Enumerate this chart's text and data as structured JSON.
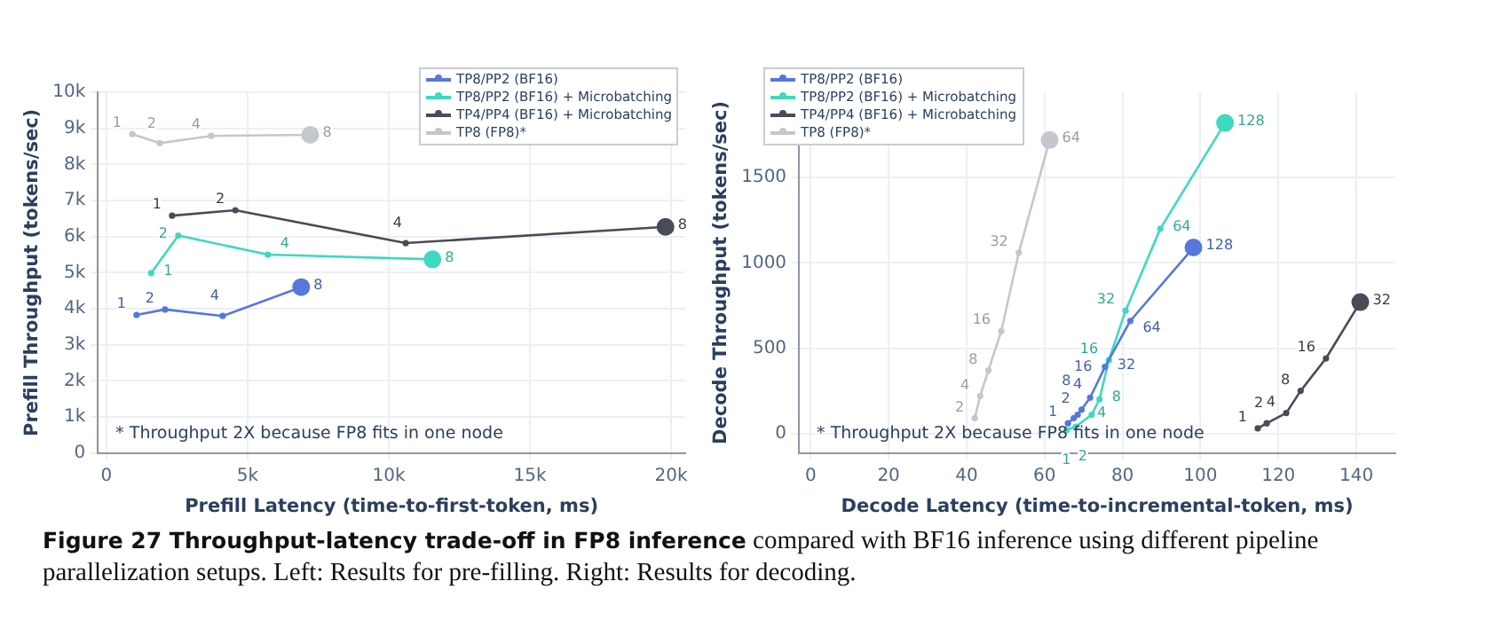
{
  "chart_data": [
    {
      "type": "line",
      "xlabel": "Prefill Latency (time-to-first-token, ms)",
      "ylabel": "Prefill Throughput (tokens/sec)",
      "xlim": [
        -300,
        20500
      ],
      "xticks": [
        0,
        {
          "value": 5000,
          "label": "5k"
        },
        {
          "value": 10000,
          "label": "10k"
        },
        {
          "value": 15000,
          "label": "15k"
        },
        {
          "value": 20000,
          "label": "20k"
        }
      ],
      "ylim": [
        0,
        10000
      ],
      "yticks": [
        0,
        {
          "value": 1000,
          "label": "1k"
        },
        {
          "value": 2000,
          "label": "2k"
        },
        {
          "value": 3000,
          "label": "3k"
        },
        {
          "value": 4000,
          "label": "4k"
        },
        {
          "value": 5000,
          "label": "5k"
        },
        {
          "value": 6000,
          "label": "6k"
        },
        {
          "value": 7000,
          "label": "7k"
        },
        {
          "value": 8000,
          "label": "8k"
        },
        {
          "value": 9000,
          "label": "9k"
        },
        {
          "value": 10000,
          "label": "10k"
        }
      ],
      "grid": true,
      "legend": "top right",
      "marker": "circle",
      "line_style": "solid",
      "annotations": [
        "* Throughput 2X because FP8 fits in one node",
        {
          "text": "1",
          "x": 1070,
          "y": 3830
        },
        {
          "text": "2",
          "x": 2080,
          "y": 3980
        },
        {
          "text": "4",
          "x": 4120,
          "y": 3800
        },
        {
          "text": "8",
          "x": 6900,
          "y": 4600
        },
        {
          "text": "1",
          "x": 1590,
          "y": 4990
        },
        {
          "text": "2",
          "x": 2550,
          "y": 6030
        },
        {
          "text": "4",
          "x": 5720,
          "y": 5500
        },
        {
          "text": "8",
          "x": 11550,
          "y": 5370
        },
        {
          "text": "1",
          "x": 2330,
          "y": 6580
        },
        {
          "text": "2",
          "x": 4570,
          "y": 6730
        },
        {
          "text": "4",
          "x": 10600,
          "y": 5820
        },
        {
          "text": "8",
          "x": 19800,
          "y": 6270
        },
        {
          "text": "1",
          "x": 920,
          "y": 8840
        },
        {
          "text": "2",
          "x": 1890,
          "y": 8590
        },
        {
          "text": "4",
          "x": 3710,
          "y": 8790
        },
        {
          "text": "8",
          "x": 7220,
          "y": 8820
        }
      ],
      "series": [
        {
          "name": "TP8/PP2 (BF16)",
          "color": "#5677de",
          "x": [
            1070,
            2080,
            4120,
            6900
          ],
          "values": [
            3830,
            3980,
            3800,
            4600
          ]
        },
        {
          "name": "TP8/PP2 (BF16) + Microbatching",
          "color": "#3fd8c0",
          "x": [
            1590,
            2550,
            5720,
            11550
          ],
          "values": [
            4990,
            6030,
            5500,
            5370
          ]
        },
        {
          "name": "TP4/PP4 (BF16) + Microbatching",
          "color": "#474d57",
          "x": [
            2330,
            4570,
            10600,
            19800
          ],
          "values": [
            6580,
            6730,
            5820,
            6270
          ]
        },
        {
          "name": "TP8 (FP8)*",
          "color": "#c4c7cd",
          "x": [
            920,
            1890,
            3710,
            7220
          ],
          "values": [
            8840,
            8590,
            8790,
            8820
          ]
        }
      ]
    },
    {
      "type": "line",
      "xlabel": "Decode Latency (time-to-incremental-token, ms)",
      "ylabel": "Decode Throughput (tokens/sec)",
      "xlim": [
        -3,
        150
      ],
      "xticks": [
        0,
        20,
        40,
        60,
        80,
        100,
        120,
        140
      ],
      "ylim": [
        -115,
        2000
      ],
      "yticks": [
        0,
        500,
        1000,
        1500
      ],
      "grid": true,
      "legend": "top left",
      "marker": "circle",
      "line_style": "solid",
      "annotations": [
        "* Throughput 2X because FP8 fits in one node",
        {
          "text": "1",
          "x": 66,
          "y": 60
        },
        {
          "text": "2",
          "x": 67.5,
          "y": 90
        },
        {
          "text": "4",
          "x": 68.5,
          "y": 110
        },
        {
          "text": "8",
          "x": 69.5,
          "y": 140
        },
        {
          "text": "16",
          "x": 71.7,
          "y": 210
        },
        {
          "text": "32",
          "x": 75.5,
          "y": 390
        },
        {
          "text": "64",
          "x": 82,
          "y": 660
        },
        {
          "text": "128",
          "x": 98.2,
          "y": 1090
        },
        {
          "text": "1",
          "x": 65.6,
          "y": 20
        },
        {
          "text": "2",
          "x": 68,
          "y": 40
        },
        {
          "text": "4",
          "x": 72.1,
          "y": 110
        },
        {
          "text": "8",
          "x": 74.1,
          "y": 200
        },
        {
          "text": "16",
          "x": 76.5,
          "y": 430
        },
        {
          "text": "32",
          "x": 80.8,
          "y": 720
        },
        {
          "text": "64",
          "x": 89.7,
          "y": 1200
        },
        {
          "text": "128",
          "x": 106.3,
          "y": 1820
        },
        {
          "text": "1",
          "x": 114.7,
          "y": 30
        },
        {
          "text": "2",
          "x": 117,
          "y": 60
        },
        {
          "text": "4",
          "x": 122,
          "y": 120
        },
        {
          "text": "8",
          "x": 125.7,
          "y": 250
        },
        {
          "text": "16",
          "x": 132.2,
          "y": 440
        },
        {
          "text": "32",
          "x": 141,
          "y": 770
        },
        {
          "text": "2",
          "x": 42.1,
          "y": 90
        },
        {
          "text": "4",
          "x": 43.5,
          "y": 220
        },
        {
          "text": "8",
          "x": 45.6,
          "y": 370
        },
        {
          "text": "16",
          "x": 48.9,
          "y": 600
        },
        {
          "text": "32",
          "x": 53.4,
          "y": 1060
        },
        {
          "text": "64",
          "x": 61.3,
          "y": 1720
        }
      ],
      "series": [
        {
          "name": "TP8/PP2 (BF16)",
          "color": "#5677de",
          "x": [
            66,
            67.5,
            68.5,
            69.5,
            71.7,
            75.5,
            82,
            98.2
          ],
          "values": [
            60,
            90,
            110,
            140,
            210,
            390,
            660,
            1090
          ]
        },
        {
          "name": "TP8/PP2 (BF16) + Microbatching",
          "color": "#3fd8c0",
          "x": [
            65.6,
            68,
            72.1,
            74.1,
            76.5,
            80.8,
            89.7,
            106.3
          ],
          "values": [
            20,
            40,
            110,
            200,
            430,
            720,
            1200,
            1820
          ]
        },
        {
          "name": "TP4/PP4 (BF16) + Microbatching",
          "color": "#474d57",
          "x": [
            114.7,
            117,
            122,
            125.7,
            132.2,
            141
          ],
          "values": [
            30,
            60,
            120,
            250,
            440,
            770
          ]
        },
        {
          "name": "TP8 (FP8)*",
          "color": "#c4c7cd",
          "x": [
            42.1,
            43.5,
            45.6,
            48.9,
            53.4,
            61.3
          ],
          "values": [
            90,
            220,
            370,
            600,
            1060,
            1720
          ]
        }
      ]
    },
    {
      "type": "other",
      "title": "Figure 27  Throughput-latency trade-off in FP8 inference",
      "annotations": [
        "compared with BF16 inference using different pipeline parallelization setups. Left: Results for pre-filling. Right: Results for decoding."
      ]
    }
  ]
}
